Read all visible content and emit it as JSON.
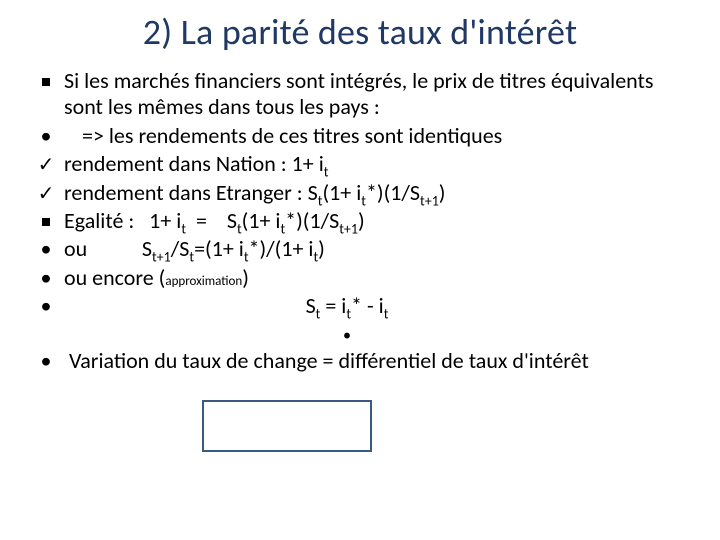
{
  "colors": {
    "heading": "#1f3864",
    "text": "#000000",
    "box_border": "#3a5a84",
    "background": "#ffffff"
  },
  "title": "2) La parité des taux d'intérêt",
  "items": [
    {
      "marker": "square",
      "html": "Si les marchés financiers sont intégrés, le prix de titres équivalents sont les mêmes dans tous les pays :"
    },
    {
      "marker": "dot",
      "html": "<span class='indent-text'>=> les rendements de ces titres sont identiques</span>"
    },
    {
      "marker": "check",
      "html": "rendement dans Nation : 1+ i<span class='sub'>t</span>"
    },
    {
      "marker": "check",
      "html": "rendement dans Etranger : S<span class='sub'>t</span>(1+ i<span class='sub'>t</span>*)(1/S<span class='sub'>t+1</span>)"
    },
    {
      "marker": "square",
      "html": "Egalité : &nbsp; 1+ i<span class='sub'>t</span> &nbsp;= &nbsp;&nbsp; S<span class='sub'>t</span>(1+ i<span class='sub'>t</span>*)(1/S<span class='sub'>t+1</span>)"
    },
    {
      "marker": "dot",
      "html": "ou &nbsp;&nbsp;&nbsp;&nbsp;&nbsp;&nbsp;&nbsp;&nbsp;&nbsp; S<span class='sub'>t+1</span>/S<span class='sub'>t</span>=(1+ i<span class='sub'>t</span>*)/(1+ i<span class='sub'>t</span>)"
    },
    {
      "marker": "dot",
      "html": ""
    },
    {
      "marker": "dot",
      "html": "ou encore (<span class='approx'>approximation</span>)"
    },
    {
      "marker": "dot",
      "html": "<span class='eq-center' style='margin-left:-60px;'>S<span class='sub'>t</span> = i<span class='sub'>t</span>* - i<span class='sub'>t</span><br><span style='font-size:16px;'>•</span></span>"
    },
    {
      "marker": "dot",
      "html": "&nbsp;Variation du taux de change = différentiel de taux d'intérêt"
    }
  ]
}
